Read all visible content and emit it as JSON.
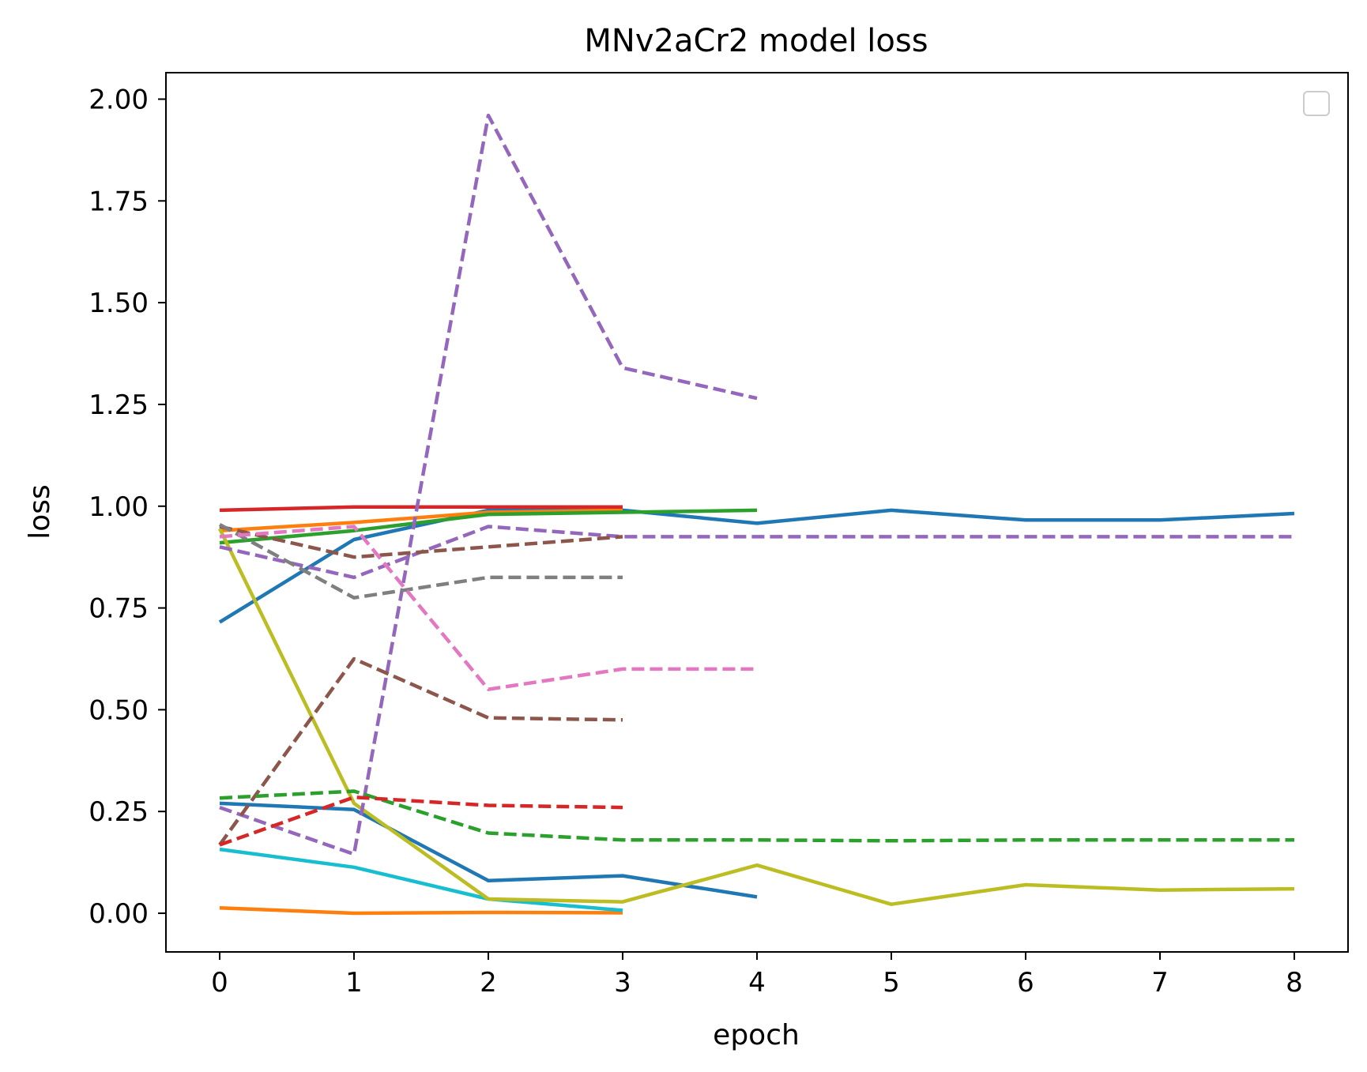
{
  "chart_data": {
    "type": "line",
    "title": "MNv2aCr2 model loss",
    "xlabel": "epoch",
    "ylabel": "loss",
    "xlim": [
      -0.4,
      8.4
    ],
    "ylim": [
      -0.095,
      2.065
    ],
    "xticks": [
      0,
      1,
      2,
      3,
      4,
      5,
      6,
      7,
      8
    ],
    "yticks": [
      0.0,
      0.25,
      0.5,
      0.75,
      1.0,
      1.25,
      1.5,
      1.75,
      2.0
    ],
    "ytick_labels": [
      "0.00",
      "0.25",
      "0.50",
      "0.75",
      "1.00",
      "1.25",
      "1.50",
      "1.75",
      "2.00"
    ],
    "grid": false,
    "legend": "top-right (empty)",
    "series": [
      {
        "color": "#1f77b4",
        "dash": false,
        "x": [
          0,
          1,
          2,
          3,
          4,
          5,
          6,
          7,
          8
        ],
        "values": [
          0.715,
          0.918,
          0.99,
          0.99,
          0.958,
          0.99,
          0.966,
          0.966,
          0.982
        ]
      },
      {
        "color": "#ff7f0e",
        "dash": false,
        "x": [
          0,
          1,
          2,
          3
        ],
        "values": [
          0.94,
          0.96,
          0.985,
          0.99
        ]
      },
      {
        "color": "#2ca02c",
        "dash": false,
        "x": [
          0,
          1,
          2,
          3,
          4
        ],
        "values": [
          0.91,
          0.94,
          0.98,
          0.985,
          0.99
        ]
      },
      {
        "color": "#d62728",
        "dash": false,
        "x": [
          0,
          1,
          2,
          3
        ],
        "values": [
          0.99,
          0.998,
          0.998,
          0.998
        ]
      },
      {
        "color": "#1f77b4",
        "dash": false,
        "x": [
          0,
          1,
          2,
          3,
          4
        ],
        "values": [
          0.27,
          0.255,
          0.08,
          0.092,
          0.04
        ]
      },
      {
        "color": "#ff7f0e",
        "dash": false,
        "x": [
          0,
          1,
          2,
          3
        ],
        "values": [
          0.013,
          0.0,
          0.002,
          0.001
        ]
      },
      {
        "color": "#17becf",
        "dash": false,
        "x": [
          0,
          1,
          2,
          3
        ],
        "values": [
          0.157,
          0.113,
          0.035,
          0.007
        ]
      },
      {
        "color": "#bcbd22",
        "dash": false,
        "x": [
          0,
          1,
          2,
          3,
          4,
          5,
          6,
          7,
          8
        ],
        "values": [
          0.945,
          0.27,
          0.035,
          0.028,
          0.118,
          0.022,
          0.07,
          0.057,
          0.06
        ]
      },
      {
        "color": "#9467bd",
        "dash": true,
        "x": [
          0,
          1,
          2,
          3,
          4,
          5,
          6,
          7,
          8
        ],
        "values": [
          0.9,
          0.825,
          0.95,
          0.925,
          0.925,
          0.925,
          0.925,
          0.925,
          0.925
        ]
      },
      {
        "color": "#9467bd",
        "dash": true,
        "x": [
          0,
          1,
          2,
          3,
          4
        ],
        "values": [
          0.26,
          0.145,
          1.96,
          1.34,
          1.265
        ]
      },
      {
        "color": "#8c564b",
        "dash": true,
        "x": [
          0,
          1,
          2,
          3
        ],
        "values": [
          0.95,
          0.875,
          0.9,
          0.925
        ]
      },
      {
        "color": "#8c564b",
        "dash": true,
        "x": [
          0,
          1,
          2,
          3
        ],
        "values": [
          0.168,
          0.625,
          0.48,
          0.475
        ]
      },
      {
        "color": "#7f7f7f",
        "dash": true,
        "x": [
          0,
          1,
          2,
          3
        ],
        "values": [
          0.955,
          0.775,
          0.825,
          0.825
        ]
      },
      {
        "color": "#e377c2",
        "dash": true,
        "x": [
          0,
          1,
          2,
          3,
          4
        ],
        "values": [
          0.925,
          0.95,
          0.55,
          0.6,
          0.6
        ]
      },
      {
        "color": "#2ca02c",
        "dash": true,
        "x": [
          0,
          1,
          2,
          3,
          4,
          5,
          6,
          7,
          8
        ],
        "values": [
          0.283,
          0.3,
          0.197,
          0.18,
          0.18,
          0.178,
          0.18,
          0.18,
          0.18
        ]
      },
      {
        "color": "#d62728",
        "dash": true,
        "x": [
          0,
          1,
          2,
          3
        ],
        "values": [
          0.168,
          0.285,
          0.265,
          0.26
        ]
      }
    ]
  }
}
